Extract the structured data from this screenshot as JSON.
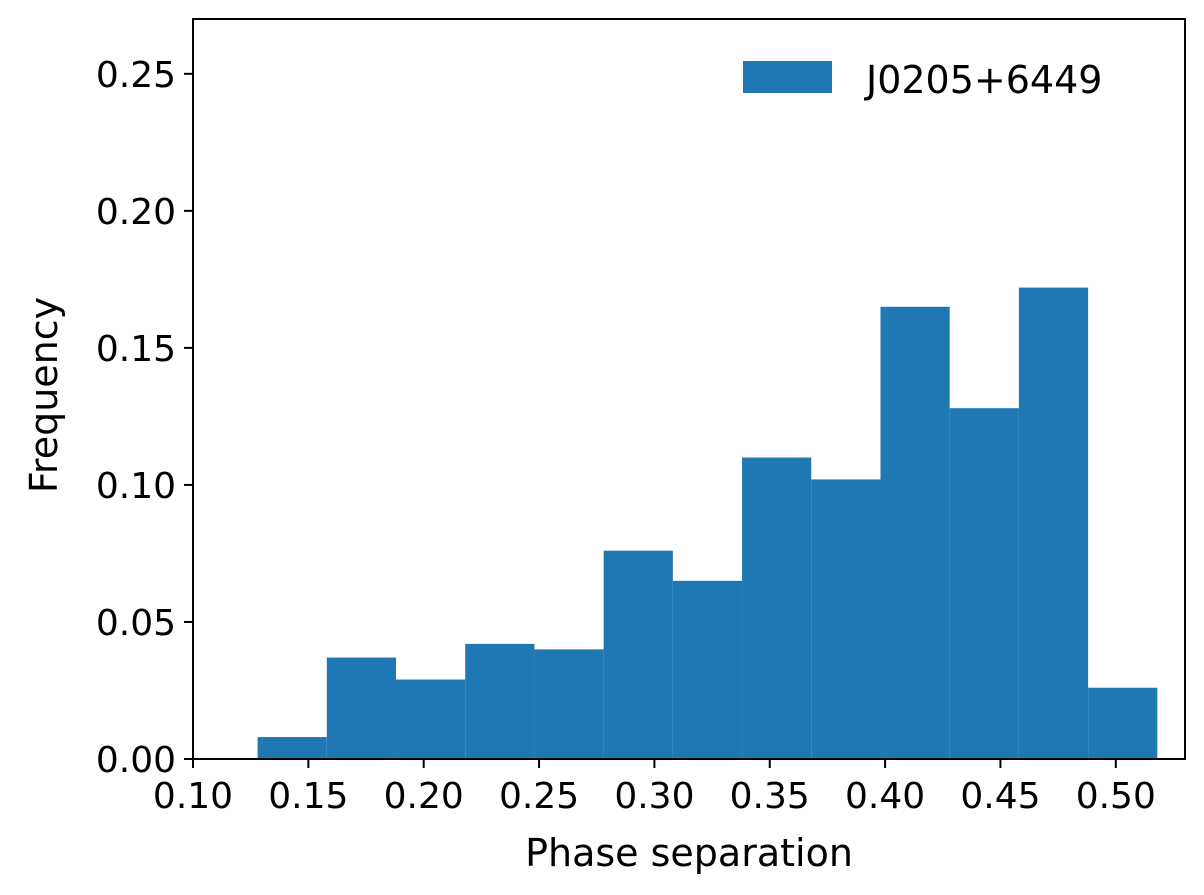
{
  "chart_data": {
    "type": "bar",
    "subtype": "histogram",
    "xlabel": "Phase separation",
    "ylabel": "Frequency",
    "xlim": [
      0.1,
      0.53
    ],
    "ylim": [
      0.0,
      0.27
    ],
    "x_ticks": [
      "0.10",
      "0.15",
      "0.20",
      "0.25",
      "0.30",
      "0.35",
      "0.40",
      "0.45",
      "0.50"
    ],
    "y_ticks": [
      "0.00",
      "0.05",
      "0.10",
      "0.15",
      "0.20",
      "0.25"
    ],
    "bin_edges": [
      0.128,
      0.158,
      0.188,
      0.218,
      0.248,
      0.278,
      0.308,
      0.338,
      0.368,
      0.398,
      0.428,
      0.458,
      0.488,
      0.518
    ],
    "series": [
      {
        "name": "J0205+6449",
        "color": "#1f77b4",
        "values": [
          0.008,
          0.037,
          0.029,
          0.042,
          0.04,
          0.076,
          0.065,
          0.11,
          0.102,
          0.165,
          0.128,
          0.172,
          0.026
        ]
      }
    ],
    "legend": {
      "position": "top-right",
      "entries": [
        "J0205+6449"
      ]
    },
    "grid": false
  }
}
